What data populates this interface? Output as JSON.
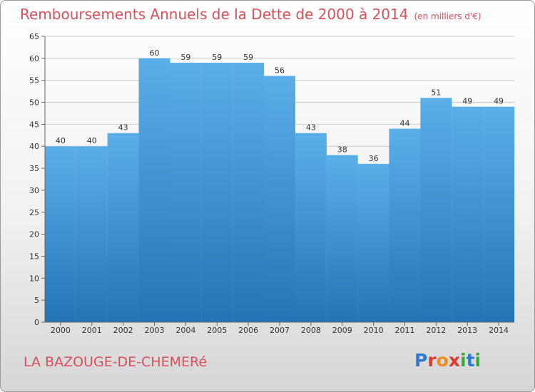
{
  "title": "Remboursements Annuels de la Dette de 2000 à 2014",
  "unit_note": "(en milliers d'€)",
  "commune": "LA BAZOUGE-DE-CHEMERé",
  "logo": {
    "text": "Proxiti",
    "letter_colors": [
      "#2e7bd0",
      "#e03a2f",
      "#f28c1e",
      "#e03a2f",
      "#3aaa35",
      "#2e7bd0",
      "#3aaa35"
    ]
  },
  "colors": {
    "title": "#d6515b",
    "bar_top": "#5aafe8",
    "bar_bottom": "#2573b6",
    "grid": "#cccccc",
    "axis": "#666666"
  },
  "chart_data": {
    "type": "bar",
    "title": "Remboursements Annuels de la Dette de 2000 à 2014",
    "categories": [
      "2000",
      "2001",
      "2002",
      "2003",
      "2004",
      "2005",
      "2006",
      "2007",
      "2008",
      "2009",
      "2010",
      "2011",
      "2012",
      "2013",
      "2014"
    ],
    "values": [
      40,
      40,
      43,
      60,
      59,
      59,
      59,
      56,
      43,
      38,
      36,
      44,
      51,
      49,
      49
    ],
    "ylim": [
      0,
      65
    ],
    "yticks": [
      0,
      5,
      10,
      15,
      20,
      25,
      30,
      35,
      40,
      45,
      50,
      55,
      60,
      65
    ],
    "grid": true,
    "data_labels": true
  }
}
